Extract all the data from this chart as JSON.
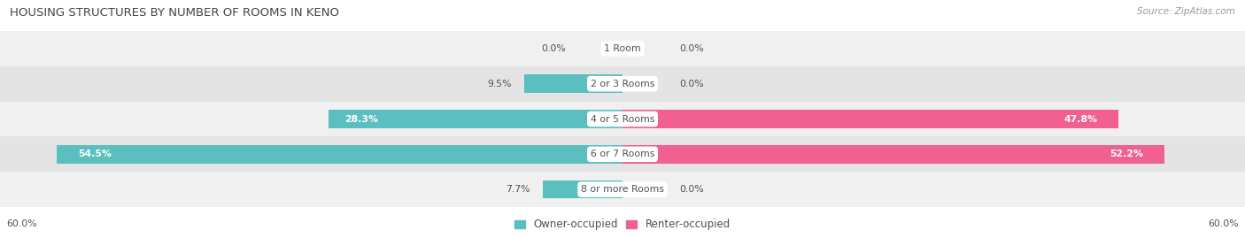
{
  "title": "Housing Structures by Number of Rooms in Keno",
  "source": "Source: ZipAtlas.com",
  "categories": [
    "1 Room",
    "2 or 3 Rooms",
    "4 or 5 Rooms",
    "6 or 7 Rooms",
    "8 or more Rooms"
  ],
  "owner_values": [
    0.0,
    9.5,
    28.3,
    54.5,
    7.7
  ],
  "renter_values": [
    0.0,
    0.0,
    47.8,
    52.2,
    0.0
  ],
  "owner_color": "#5BBFBF",
  "renter_color": "#F06090",
  "row_bg_colors": [
    "#F0F0F0",
    "#E4E4E4"
  ],
  "xlim": 60.0,
  "bar_height": 0.52,
  "figsize": [
    14.06,
    2.69
  ],
  "dpi": 100,
  "title_fontsize": 9.5,
  "label_fontsize": 7.8,
  "category_fontsize": 7.8,
  "legend_fontsize": 8.5,
  "source_fontsize": 7.5
}
